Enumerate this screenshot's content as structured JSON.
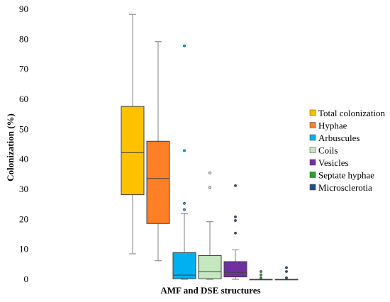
{
  "chart_data": {
    "type": "box",
    "xlabel": "AMF and DSE structures",
    "ylabel": "Colonization (%)",
    "ylim": [
      0,
      90
    ],
    "yticks": [
      0,
      10,
      20,
      30,
      40,
      50,
      60,
      70,
      80,
      90
    ],
    "grid": false,
    "legend_position": "right",
    "series": [
      {
        "name": "Total colonization",
        "color": "#FFC000",
        "min": 8.5,
        "q1": 28.2,
        "median": 42.2,
        "q3": 57.6,
        "max": 88.3,
        "outliers": []
      },
      {
        "name": "Hyphae",
        "color": "#FF7F27",
        "min": 6.2,
        "q1": 18.6,
        "median": 33.6,
        "q3": 46.0,
        "max": 79.2,
        "outliers": []
      },
      {
        "name": "Arbuscules",
        "color": "#00B0F0",
        "min": 0,
        "q1": 0.2,
        "median": 1.4,
        "q3": 8.9,
        "max": 21.9,
        "outliers": [
          23.2,
          25.3,
          42.9,
          77.8
        ]
      },
      {
        "name": "Coils",
        "color": "#C6E8C0",
        "min": 0,
        "q1": 0.2,
        "median": 2.5,
        "q3": 7.9,
        "max": 19.2,
        "outliers": [
          30.6,
          35.5
        ]
      },
      {
        "name": "Vesicles",
        "color": "#7030A0",
        "min": 0,
        "q1": 0.8,
        "median": 2.3,
        "q3": 5.9,
        "max": 9.8,
        "outliers": [
          15.4,
          19.6,
          20.8,
          31.2
        ]
      },
      {
        "name": "Septate hyphae",
        "color": "#2CA02C",
        "min": 0,
        "q1": 0,
        "median": 0,
        "q3": 0,
        "max": 0,
        "outliers": [
          0.5,
          1.5,
          2.6
        ]
      },
      {
        "name": "Microsclerotia",
        "color": "#1F4E8C",
        "min": 0,
        "q1": 0,
        "median": 0,
        "q3": 0,
        "max": 0,
        "outliers": [
          0.5,
          2.6,
          3.9
        ]
      }
    ]
  }
}
